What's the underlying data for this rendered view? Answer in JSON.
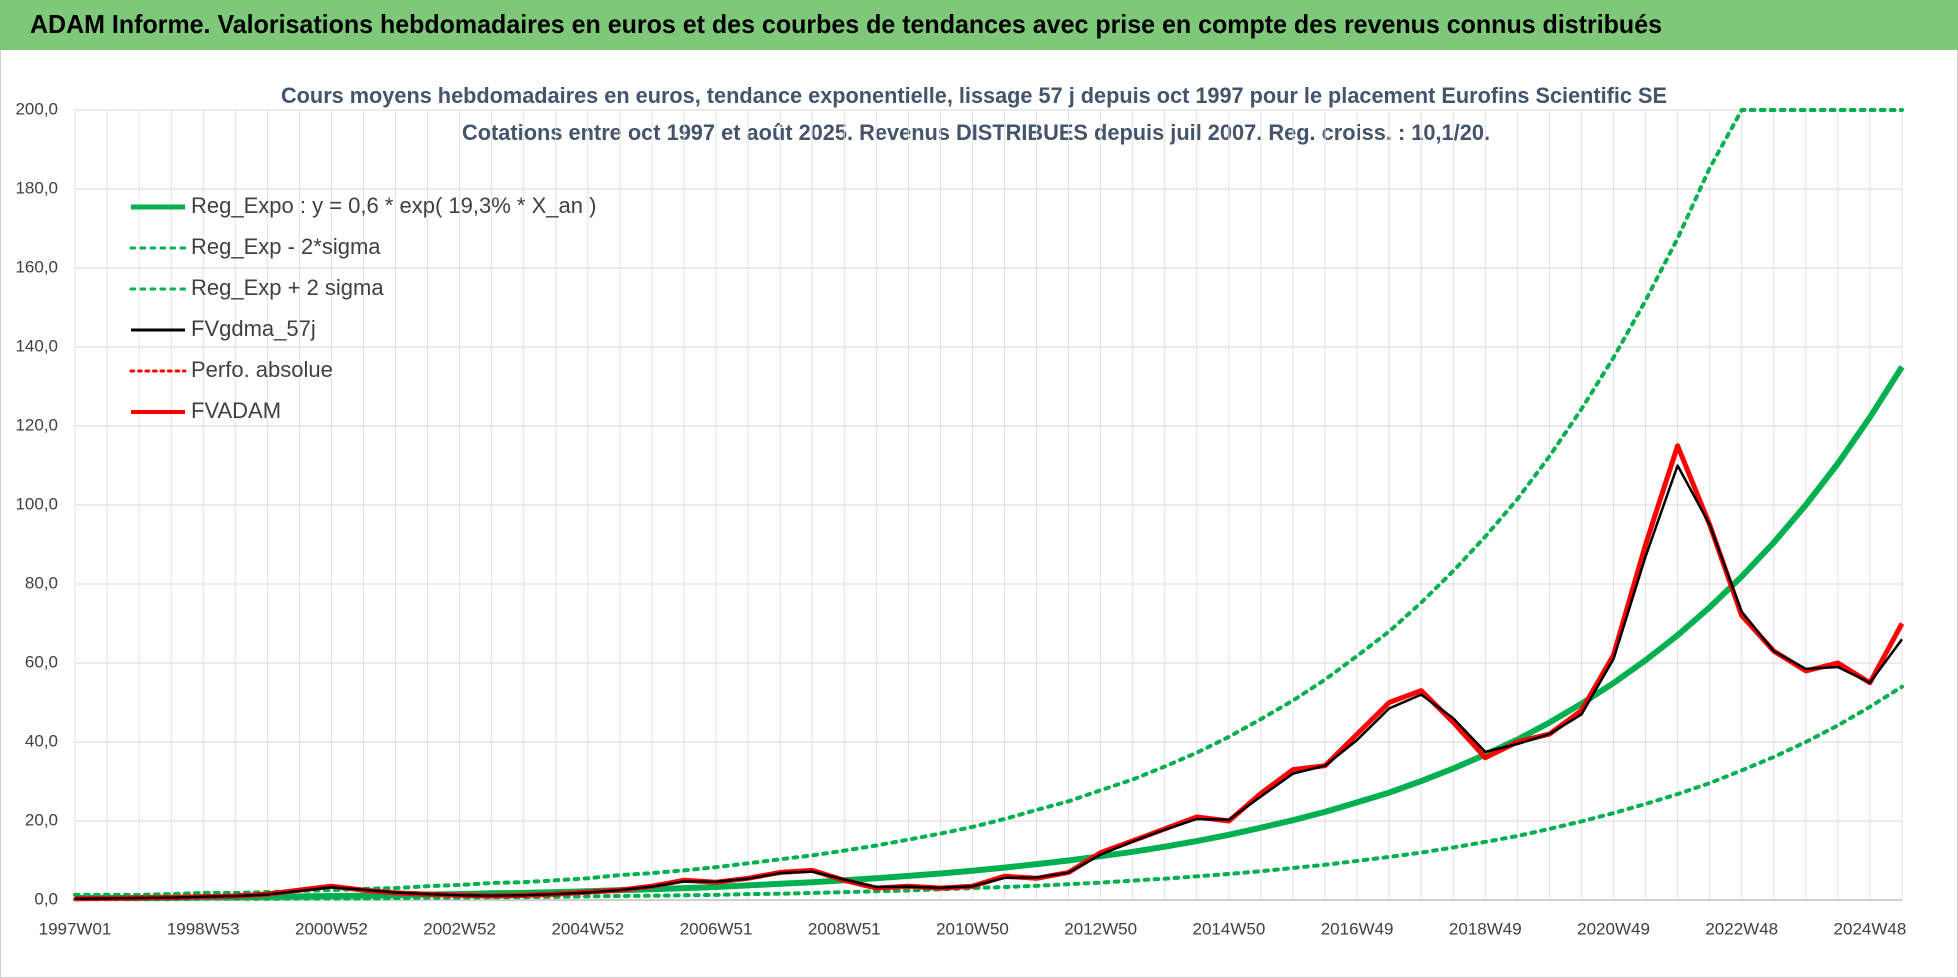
{
  "chart_data": {
    "type": "line",
    "title": "ADAM Informe. Valorisations hebdomadaires en euros et des courbes de tendances avec prise en compte des revenus connus distribués",
    "subtitle": [
      "Cours moyens hebdomadaires en euros, tendance exponentielle, lissage 57 j depuis oct 1997 pour le placement Eurofins Scientific SE",
      "Cotations entre oct 1997 et août 2025.  Revenus DISTRIBUES depuis juil 2007.  Reg. croiss. : 10,1/20."
    ],
    "categories": [
      "1997W01",
      null,
      null,
      null,
      "1998W53",
      null,
      null,
      null,
      "2000W52",
      null,
      null,
      null,
      "2002W52",
      null,
      null,
      null,
      "2004W52",
      null,
      null,
      null,
      "2006W51",
      null,
      null,
      null,
      "2008W51",
      null,
      null,
      null,
      "2010W50",
      null,
      null,
      null,
      "2012W50",
      null,
      null,
      null,
      "2014W50",
      null,
      null,
      null,
      "2016W49",
      null,
      null,
      null,
      "2018W49",
      null,
      null,
      null,
      "2020W49",
      null,
      null,
      null,
      "2022W48",
      null,
      null,
      null,
      "2024W48",
      null
    ],
    "ylim": [
      0,
      200
    ],
    "yticks": [
      {
        "value": 0,
        "label": "0,0"
      },
      {
        "value": 20,
        "label": "20,0"
      },
      {
        "value": 40,
        "label": "40,0"
      },
      {
        "value": 60,
        "label": "60,0"
      },
      {
        "value": 80,
        "label": "80,0"
      },
      {
        "value": 100,
        "label": "100,0"
      },
      {
        "value": 120,
        "label": "120,0"
      },
      {
        "value": 140,
        "label": "140,0"
      },
      {
        "value": 160,
        "label": "160,0"
      },
      {
        "value": 180,
        "label": "180,0"
      },
      {
        "value": 200,
        "label": "200,0"
      }
    ],
    "grid": true,
    "legend": "upper left",
    "series": [
      {
        "name": "Reg_Expo : y = 0,6 * exp( 19,3% *  X_an )",
        "color": "#00b050",
        "style": "solid",
        "width": 6,
        "values": [
          0.5,
          0.5,
          0.5,
          0.6,
          0.7,
          0.7,
          0.8,
          0.9,
          1.0,
          1.1,
          1.2,
          1.4,
          1.5,
          1.7,
          1.8,
          2.0,
          2.2,
          2.5,
          2.7,
          3.0,
          3.3,
          3.7,
          4.1,
          4.5,
          5.0,
          5.5,
          6.1,
          6.7,
          7.4,
          8.2,
          9.1,
          10.0,
          11.1,
          12.2,
          13.5,
          14.9,
          16.5,
          18.3,
          20.2,
          22.3,
          24.7,
          27.2,
          30.1,
          33.3,
          36.8,
          40.6,
          44.9,
          49.7,
          54.9,
          60.7,
          67.0,
          74.1,
          81.9,
          90.5,
          100.0,
          110.5,
          122.2,
          135.0
        ]
      },
      {
        "name": "Reg_Exp - 2*sigma",
        "color": "#00b050",
        "style": "dotted",
        "width": 4,
        "values": [
          0.2,
          0.2,
          0.2,
          0.2,
          0.3,
          0.3,
          0.3,
          0.4,
          0.4,
          0.4,
          0.5,
          0.6,
          0.6,
          0.7,
          0.7,
          0.8,
          0.9,
          1.0,
          1.1,
          1.2,
          1.3,
          1.5,
          1.6,
          1.8,
          2.0,
          2.2,
          2.4,
          2.7,
          3.0,
          3.3,
          3.6,
          4.0,
          4.4,
          4.9,
          5.4,
          6.0,
          6.6,
          7.3,
          8.1,
          8.9,
          9.9,
          10.9,
          12.0,
          13.3,
          14.7,
          16.2,
          18.0,
          19.9,
          22.0,
          24.3,
          26.8,
          29.6,
          32.8,
          36.2,
          40.0,
          44.2,
          48.9,
          54.0
        ]
      },
      {
        "name": "Reg_Exp + 2 sigma",
        "color": "#00b050",
        "style": "dotted",
        "width": 4,
        "values": [
          1.3,
          1.3,
          1.3,
          1.5,
          1.8,
          1.8,
          2.0,
          2.3,
          2.5,
          2.8,
          3.0,
          3.5,
          3.8,
          4.3,
          4.5,
          5.0,
          5.5,
          6.3,
          6.8,
          7.5,
          8.3,
          9.3,
          10.3,
          11.3,
          12.5,
          13.8,
          15.3,
          16.8,
          18.5,
          20.5,
          22.8,
          25.0,
          27.8,
          30.5,
          33.8,
          37.3,
          41.3,
          45.8,
          50.5,
          55.8,
          61.8,
          68.0,
          75.3,
          83.3,
          92.0,
          101.5,
          112.3,
          124.3,
          137.3,
          151.8,
          167.5,
          185.3,
          200,
          200,
          200,
          200,
          200,
          200
        ]
      },
      {
        "name": "FVgdma_57j",
        "color": "#000000",
        "style": "solid",
        "width": 2.5,
        "values": [
          0.3,
          0.4,
          0.5,
          0.6,
          0.8,
          1.0,
          1.4,
          2.3,
          3.2,
          2.6,
          1.9,
          1.5,
          1.2,
          1.1,
          1.2,
          1.5,
          1.9,
          2.5,
          3.4,
          4.7,
          4.6,
          5.4,
          6.8,
          7.2,
          5.2,
          3.3,
          3.4,
          3.1,
          3.5,
          5.6,
          5.7,
          6.9,
          11.5,
          14.8,
          17.8,
          20.5,
          20.3,
          26.2,
          32.0,
          34.0,
          40.5,
          48.5,
          52.0,
          46.0,
          37.5,
          39.5,
          42.0,
          47.0,
          61.0,
          87.0,
          110.0,
          95.0,
          73.0,
          63.0,
          58.5,
          59.0,
          55.0,
          66.0
        ]
      },
      {
        "name": "Perfo. absolue",
        "color": "#ff0000",
        "style": "dotted",
        "width": 3,
        "values": [
          0.3,
          0.4,
          0.5,
          0.6,
          0.8,
          1.0,
          1.5,
          2.5,
          3.5,
          2.5,
          1.8,
          1.5,
          1.2,
          1.0,
          1.2,
          1.5,
          2.0,
          2.5,
          3.5,
          5.0,
          4.5,
          5.5,
          7.0,
          7.5,
          5.0,
          3.0,
          3.5,
          3.0,
          3.5,
          6.0,
          5.5,
          7.0,
          12.0,
          15.0,
          18.0,
          21.0,
          20.0,
          27.0,
          33.0,
          34.0,
          42.0,
          50.0,
          53.0,
          45.0,
          36.0,
          40.0,
          42.0,
          48.0,
          62.0,
          90.0,
          115.0,
          95.0,
          72.0,
          63.0,
          58.0,
          60.0,
          55.0,
          70.0
        ]
      },
      {
        "name": "FVADAM",
        "color": "#ff0000",
        "style": "solid",
        "width": 5,
        "values": [
          0.3,
          0.4,
          0.5,
          0.6,
          0.8,
          1.0,
          1.5,
          2.5,
          3.5,
          2.5,
          1.8,
          1.5,
          1.2,
          1.0,
          1.2,
          1.5,
          2.0,
          2.5,
          3.5,
          5.0,
          4.5,
          5.5,
          7.0,
          7.5,
          5.0,
          3.0,
          3.5,
          3.0,
          3.5,
          6.0,
          5.5,
          7.0,
          12.0,
          15.0,
          18.0,
          21.0,
          20.0,
          27.0,
          33.0,
          34.0,
          42.0,
          50.0,
          53.0,
          45.0,
          36.0,
          40.0,
          42.0,
          48.0,
          62.0,
          90.0,
          115.0,
          95.0,
          72.0,
          63.0,
          58.0,
          60.0,
          55.0,
          70.0
        ]
      }
    ]
  }
}
